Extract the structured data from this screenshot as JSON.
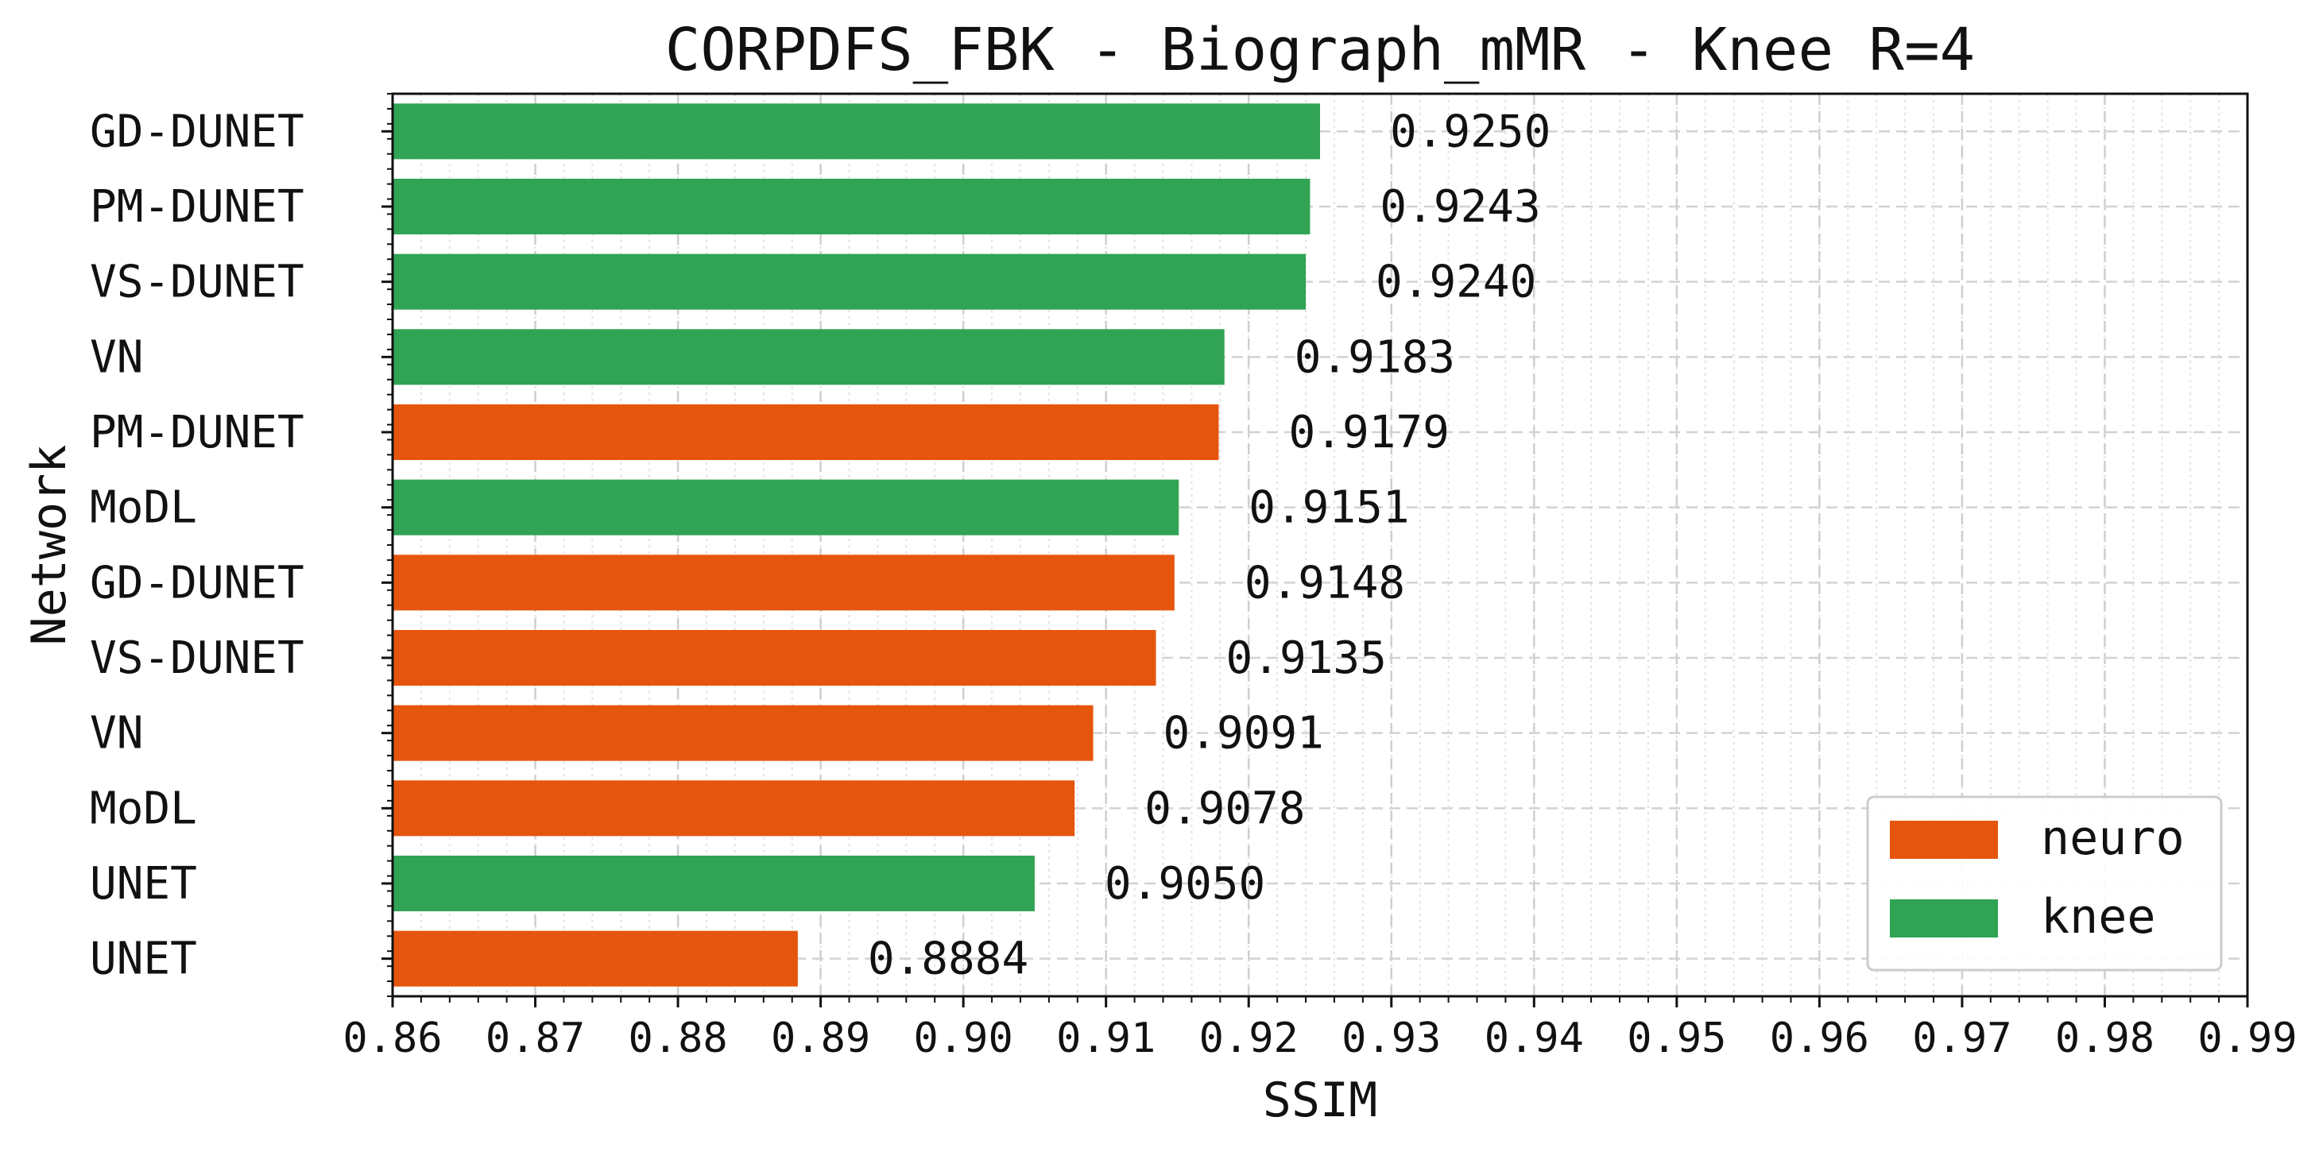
{
  "chart_data": {
    "type": "bar",
    "orientation": "horizontal",
    "title": "CORPDFS_FBK - Biograph_mMR - Knee R=4",
    "xlabel": "SSIM",
    "ylabel": "Network",
    "xlim": [
      0.86,
      0.99
    ],
    "xticks": [
      "0.86",
      "0.87",
      "0.88",
      "0.89",
      "0.90",
      "0.91",
      "0.92",
      "0.93",
      "0.94",
      "0.95",
      "0.96",
      "0.97",
      "0.98",
      "0.99"
    ],
    "grid": true,
    "legend_position": "lower-right",
    "legend": [
      {
        "name": "neuro",
        "color": "#e6550d"
      },
      {
        "name": "knee",
        "color": "#31a354"
      }
    ],
    "bars": [
      {
        "label": "GD-DUNET",
        "value": 0.925,
        "value_label": "0.9250",
        "group": "knee"
      },
      {
        "label": "PM-DUNET",
        "value": 0.9243,
        "value_label": "0.9243",
        "group": "knee"
      },
      {
        "label": "VS-DUNET",
        "value": 0.924,
        "value_label": "0.9240",
        "group": "knee"
      },
      {
        "label": "VN",
        "value": 0.9183,
        "value_label": "0.9183",
        "group": "knee"
      },
      {
        "label": "PM-DUNET",
        "value": 0.9179,
        "value_label": "0.9179",
        "group": "neuro"
      },
      {
        "label": "MoDL",
        "value": 0.9151,
        "value_label": "0.9151",
        "group": "knee"
      },
      {
        "label": "GD-DUNET",
        "value": 0.9148,
        "value_label": "0.9148",
        "group": "neuro"
      },
      {
        "label": "VS-DUNET",
        "value": 0.9135,
        "value_label": "0.9135",
        "group": "neuro"
      },
      {
        "label": "VN",
        "value": 0.9091,
        "value_label": "0.9091",
        "group": "neuro"
      },
      {
        "label": "MoDL",
        "value": 0.9078,
        "value_label": "0.9078",
        "group": "neuro"
      },
      {
        "label": "UNET",
        "value": 0.905,
        "value_label": "0.9050",
        "group": "knee"
      },
      {
        "label": "UNET",
        "value": 0.8884,
        "value_label": "0.8884",
        "group": "neuro"
      }
    ]
  }
}
